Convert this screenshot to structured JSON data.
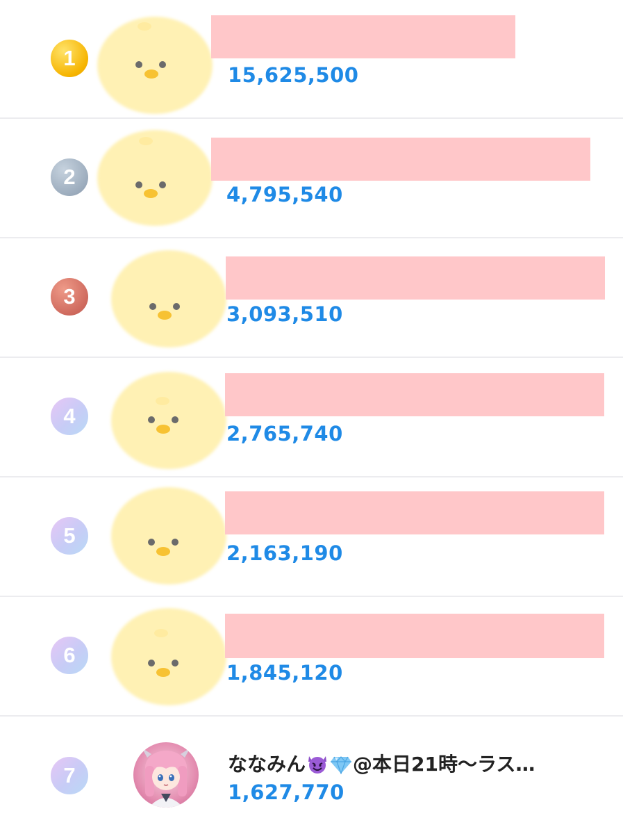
{
  "ranking": {
    "rows": [
      {
        "rank": "1",
        "rank_style": "gold",
        "name": "",
        "count": "15,625,500",
        "avatar": "chick-placeholder-icon"
      },
      {
        "rank": "2",
        "rank_style": "silver",
        "name": "",
        "count": "4,795,540",
        "avatar": "chick-placeholder-icon"
      },
      {
        "rank": "3",
        "rank_style": "bronze",
        "name": "",
        "count": "3,093,510",
        "avatar": "chick-placeholder-icon"
      },
      {
        "rank": "4",
        "rank_style": "normal",
        "name": "",
        "count": "2,765,740",
        "avatar": "chick-placeholder-icon"
      },
      {
        "rank": "5",
        "rank_style": "normal",
        "name": "",
        "count": "2,163,190",
        "avatar": "chick-placeholder-icon"
      },
      {
        "rank": "6",
        "rank_style": "normal",
        "name": "",
        "count": "1,845,120",
        "avatar": "chick-placeholder-icon"
      },
      {
        "rank": "7",
        "rank_style": "normal",
        "name_prefix": "ななみん",
        "name_suffix": "@本日21時〜ラス…",
        "count": "1,627,770",
        "avatar": "user-avatar-photo"
      }
    ]
  },
  "colors": {
    "count_text": "#1f8ae6",
    "redaction": "#ffc7c9",
    "chick_body": "#fff1b4",
    "divider": "#ececef"
  }
}
